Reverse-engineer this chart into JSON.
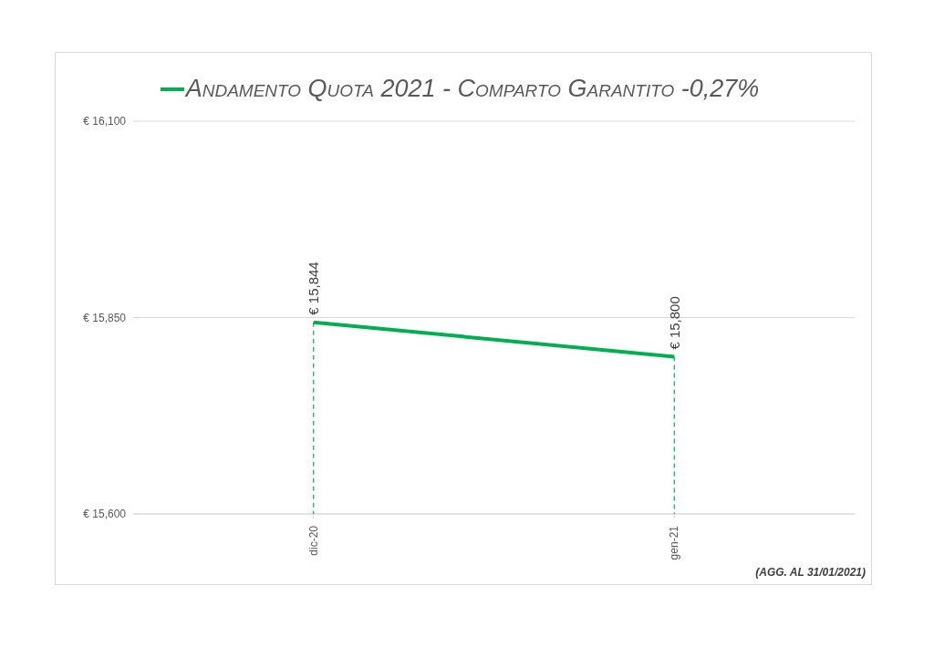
{
  "chart_data": {
    "type": "line",
    "categories": [
      "dic-20",
      "gen-21"
    ],
    "series": [
      {
        "name": "Andamento Quota 2021 - Comparto Garantito -0,27%",
        "color": "#00b050",
        "values": [
          15844,
          15800
        ],
        "value_labels": [
          "€ 15,844",
          "€ 15,800"
        ]
      }
    ],
    "ylim": [
      15600,
      16100
    ],
    "yticks": [
      {
        "value": 15600,
        "label": "€ 15,600"
      },
      {
        "value": 15850,
        "label": "€ 15,850"
      },
      {
        "value": 16100,
        "label": "€ 16,100"
      }
    ],
    "grid": "y",
    "legend": "top",
    "line_style": "solid",
    "annotations": [
      "(AGG. AL 31/01/2021)"
    ]
  }
}
